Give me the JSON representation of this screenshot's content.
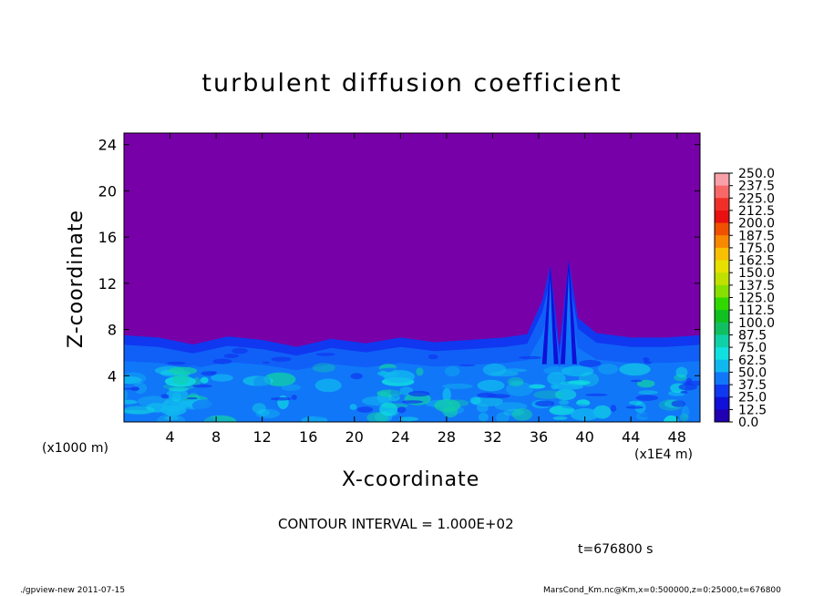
{
  "chart_data": {
    "type": "heatmap",
    "title": "turbulent diffusion coefficient",
    "xlabel": "X-coordinate",
    "ylabel": "Z-coordinate",
    "x_multiplier_label": "(x1000 m)",
    "x_unit_label": "(x1E4 m)",
    "xlim": [
      0,
      50
    ],
    "ylim": [
      0,
      25
    ],
    "x_ticks": [
      4,
      8,
      12,
      16,
      20,
      24,
      28,
      32,
      36,
      40,
      44,
      48
    ],
    "y_ticks": [
      4,
      8,
      12,
      16,
      20,
      24
    ],
    "colorbar": {
      "levels": [
        "250.0",
        "237.5",
        "225.0",
        "212.5",
        "200.0",
        "187.5",
        "175.0",
        "162.5",
        "150.0",
        "137.5",
        "125.0",
        "112.5",
        "100.0",
        "87.5",
        "75.0",
        "62.5",
        "50.0",
        "37.5",
        "25.0",
        "12.5",
        "0.0"
      ],
      "colors": [
        "#f8a0a8",
        "#f86868",
        "#f03028",
        "#e81010",
        "#f05000",
        "#f88800",
        "#f8c000",
        "#e8e000",
        "#c0e000",
        "#88e000",
        "#30d800",
        "#10c020",
        "#10c060",
        "#10d0a8",
        "#10e0e0",
        "#10b8f0",
        "#1078f8",
        "#1038f0",
        "#1010d8",
        "#2000b0",
        "#7800a8"
      ]
    },
    "field": {
      "background_value_range": "0.0-12.5",
      "boundary_layer_top_z": 7.5,
      "plumes": [
        {
          "x": 37.0,
          "top_z": 13.5
        },
        {
          "x": 38.6,
          "top_z": 14.0
        }
      ],
      "layer_top_profile_x": [
        0,
        3,
        6,
        9,
        12,
        15,
        18,
        21,
        24,
        27,
        30,
        33,
        35,
        36.3,
        37,
        37.8,
        38.6,
        39.4,
        41,
        44,
        47,
        50
      ],
      "layer_top_profile_z": [
        7.5,
        7.3,
        6.7,
        7.4,
        7.1,
        6.5,
        7.2,
        6.8,
        7.3,
        6.9,
        7.1,
        7.3,
        7.6,
        10.5,
        13.5,
        6.5,
        14.0,
        9.0,
        7.7,
        7.3,
        7.3,
        7.5
      ]
    },
    "contour_interval_text": "CONTOUR INTERVAL = 1.000E+02",
    "time_text": "t=676800 s"
  },
  "footer": {
    "left": "./gpview-new   2011-07-15",
    "right": "MarsCond_Km.nc@Km,x=0:500000,z=0:25000,t=676800"
  }
}
